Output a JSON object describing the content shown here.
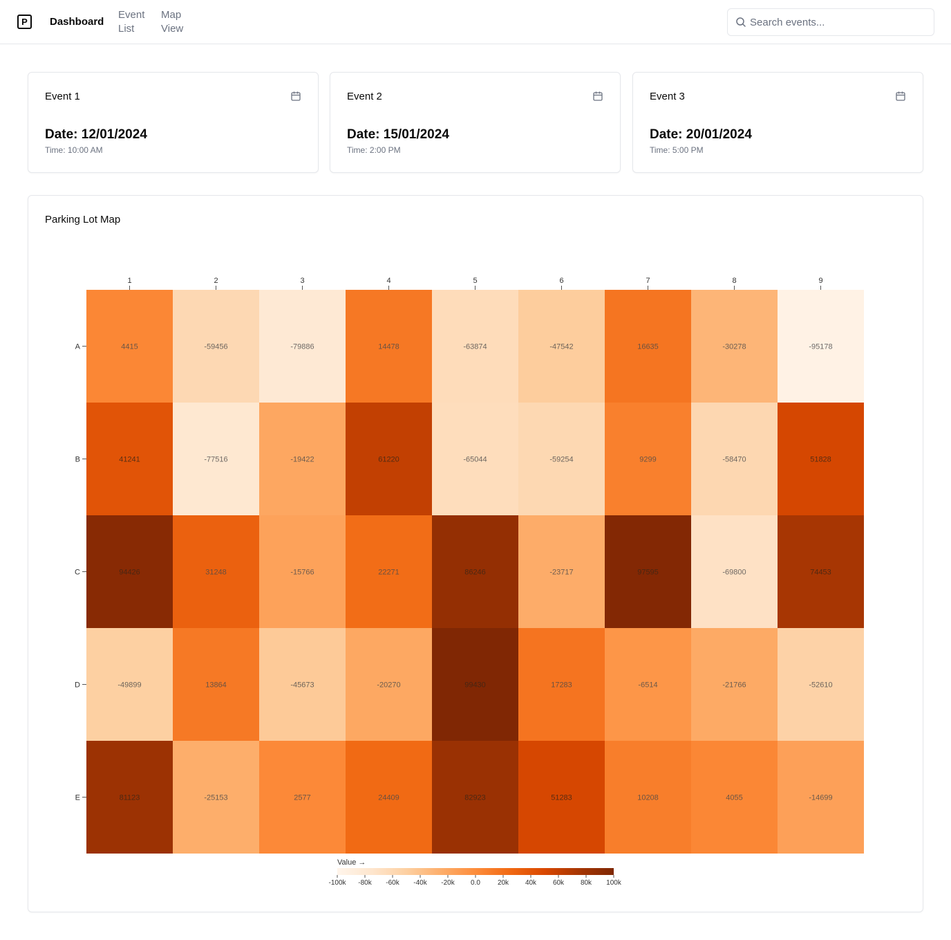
{
  "header": {
    "logo_letter": "P",
    "nav": [
      {
        "label": "Dashboard"
      },
      {
        "label": "Event List"
      },
      {
        "label": "Map View"
      }
    ],
    "search": {
      "placeholder": "Search events...",
      "icon": "search-icon"
    }
  },
  "events": [
    {
      "title": "Event 1",
      "date": "Date: 12/01/2024",
      "time": "Time: 10:00 AM",
      "icon": "calendar-icon"
    },
    {
      "title": "Event 2",
      "date": "Date: 15/01/2024",
      "time": "Time: 2:00 PM",
      "icon": "calendar-icon"
    },
    {
      "title": "Event 3",
      "date": "Date: 20/01/2024",
      "time": "Time: 5:00 PM",
      "icon": "calendar-icon"
    }
  ],
  "map": {
    "title": "Parking Lot Map"
  },
  "chart_data": {
    "type": "heatmap",
    "columns": [
      "1",
      "2",
      "3",
      "4",
      "5",
      "6",
      "7",
      "8",
      "9"
    ],
    "rows": [
      "A",
      "B",
      "C",
      "D",
      "E"
    ],
    "values": [
      [
        4415,
        -59456,
        -79886,
        14478,
        -63874,
        -47542,
        16635,
        -30278,
        -95178
      ],
      [
        41241,
        -77516,
        -19422,
        61220,
        -65044,
        -59254,
        9299,
        -58470,
        51828
      ],
      [
        94426,
        31248,
        -15766,
        22271,
        86246,
        -23717,
        97595,
        -69800,
        74453
      ],
      [
        -49899,
        13864,
        -45673,
        -20270,
        99430,
        17283,
        -6514,
        -21766,
        -52610
      ],
      [
        81123,
        -25153,
        2577,
        24409,
        82923,
        51283,
        10208,
        4055,
        -14699
      ]
    ],
    "color_scale": {
      "label": "Value →",
      "domain": [
        -100000,
        100000
      ],
      "scheme": "oranges",
      "ticks": [
        "-100k",
        "-80k",
        "-60k",
        "-40k",
        "-20k",
        "0.0",
        "20k",
        "40k",
        "60k",
        "80k",
        "100k"
      ],
      "stops": [
        "#fff5eb",
        "#fee6ce",
        "#fdd0a2",
        "#fdae6b",
        "#fd8d3c",
        "#f16913",
        "#d94801",
        "#a63603",
        "#7f2704"
      ]
    }
  }
}
